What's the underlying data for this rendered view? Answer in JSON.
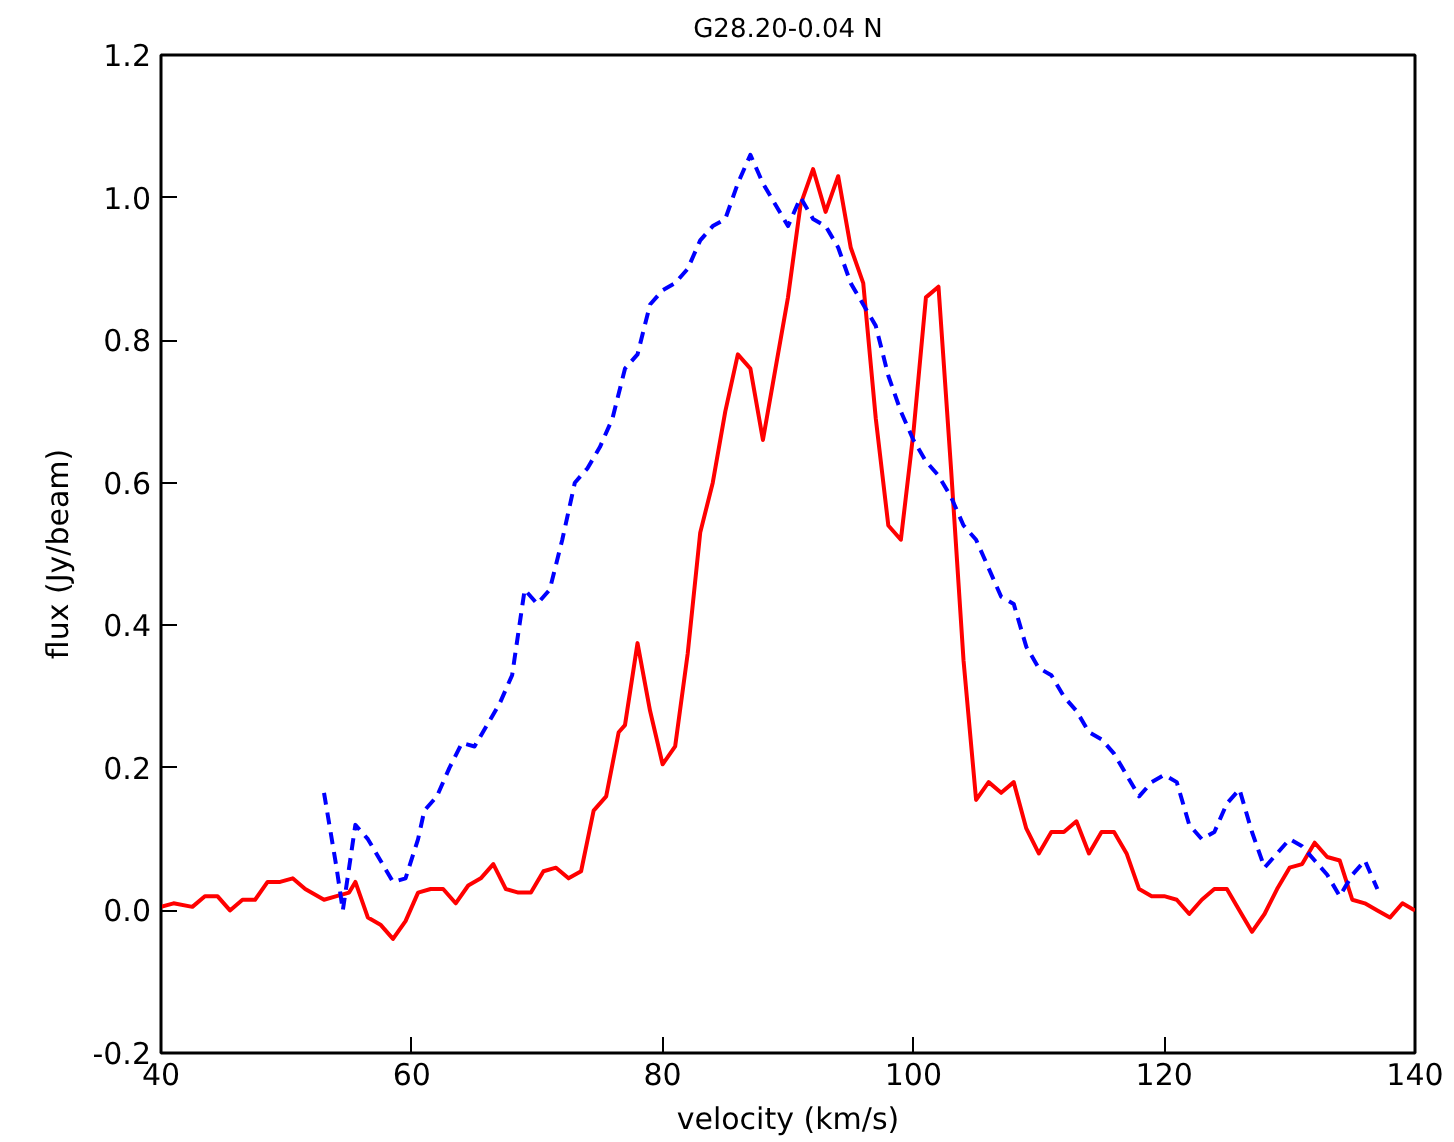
{
  "chart_data": {
    "type": "line",
    "title": "G28.20-0.04 N",
    "xlabel": "velocity (km/s)",
    "ylabel": "flux (Jy/beam)",
    "xlim": [
      40,
      140
    ],
    "xticks": [
      40,
      60,
      80,
      100,
      120,
      140
    ],
    "ylim": [
      -0.2,
      1.2
    ],
    "yticks": [
      {
        "value": -0.2,
        "label": "-0.2"
      },
      {
        "value": 0.0,
        "label": "0.0"
      },
      {
        "value": 0.2,
        "label": "0.2"
      },
      {
        "value": 0.4,
        "label": "0.4"
      },
      {
        "value": 0.6,
        "label": "0.6"
      },
      {
        "value": 0.8,
        "label": "0.8"
      },
      {
        "value": 1.0,
        "label": "1.0"
      },
      {
        "value": 1.2,
        "label": "1.2"
      }
    ],
    "grid": false,
    "series": [
      {
        "color": "#ff0000",
        "line_style": "solid",
        "x": [
          40,
          41,
          42.5,
          43.5,
          44.5,
          45.5,
          46.5,
          47.5,
          48.5,
          49.5,
          50.5,
          51.5,
          53,
          54,
          55,
          55.5,
          56.5,
          57.5,
          58.5,
          59.5,
          60.5,
          61.5,
          62.5,
          63.5,
          64.5,
          65.5,
          66.5,
          67.5,
          68.5,
          69.5,
          70.5,
          71.5,
          72.5,
          73.5,
          74.5,
          75.5,
          76.5,
          77,
          78,
          79,
          80,
          81,
          82,
          83,
          84,
          85,
          86,
          87,
          88,
          89,
          90,
          91,
          92,
          93,
          94,
          95,
          96,
          97,
          98,
          99,
          100,
          101,
          102,
          103,
          104,
          105,
          106,
          107,
          108,
          109,
          110,
          111,
          112,
          113,
          114,
          115,
          116,
          117,
          118,
          119,
          120,
          121,
          122,
          123,
          124,
          125,
          126,
          127,
          128,
          129,
          130,
          131,
          132,
          133,
          134,
          135,
          136,
          137,
          138,
          139,
          140
        ],
        "values": [
          0.005,
          0.01,
          0.005,
          0.02,
          0.02,
          0.0,
          0.015,
          0.015,
          0.04,
          0.04,
          0.045,
          0.03,
          0.015,
          0.02,
          0.025,
          0.04,
          -0.01,
          -0.02,
          -0.04,
          -0.015,
          0.025,
          0.03,
          0.03,
          0.01,
          0.035,
          0.045,
          0.065,
          0.03,
          0.025,
          0.025,
          0.055,
          0.06,
          0.045,
          0.055,
          0.14,
          0.16,
          0.25,
          0.26,
          0.375,
          0.28,
          0.205,
          0.23,
          0.36,
          0.53,
          0.6,
          0.7,
          0.78,
          0.76,
          0.66,
          0.76,
          0.86,
          0.99,
          1.04,
          0.98,
          1.03,
          0.93,
          0.88,
          0.69,
          0.54,
          0.52,
          0.67,
          0.86,
          0.875,
          0.62,
          0.35,
          0.155,
          0.18,
          0.165,
          0.18,
          0.115,
          0.08,
          0.11,
          0.11,
          0.125,
          0.08,
          0.11,
          0.11,
          0.08,
          0.03,
          0.02,
          0.02,
          0.015,
          -0.005,
          0.015,
          0.03,
          0.03,
          0.0,
          -0.03,
          -0.005,
          0.03,
          0.06,
          0.065,
          0.095,
          0.075,
          0.07,
          0.015,
          0.01,
          0.0,
          -0.01,
          0.01,
          0.0
        ]
      },
      {
        "color": "#0000ff",
        "line_style": "dashed",
        "x": [
          53,
          54,
          54.5,
          55.5,
          56.5,
          57.5,
          58.5,
          59.5,
          60.5,
          61,
          62,
          63,
          64,
          65,
          66,
          67,
          68,
          69,
          70,
          71,
          72,
          73,
          74,
          75,
          76,
          77,
          78,
          79,
          80,
          81,
          82,
          83,
          84,
          85,
          86,
          87,
          88,
          89,
          90,
          91,
          92,
          93,
          94,
          95,
          96,
          97,
          98,
          99,
          100,
          101,
          102,
          103,
          104,
          105,
          106,
          107,
          108,
          109,
          110,
          111,
          112,
          113,
          114,
          115,
          116,
          117,
          118,
          119,
          120,
          121,
          122,
          123,
          124,
          125,
          126,
          127,
          128,
          129,
          130,
          131,
          132,
          133,
          134,
          135,
          136,
          137
        ],
        "values": [
          0.165,
          0.06,
          0.0,
          0.12,
          0.1,
          0.07,
          0.04,
          0.045,
          0.1,
          0.14,
          0.16,
          0.2,
          0.235,
          0.23,
          0.26,
          0.29,
          0.33,
          0.45,
          0.43,
          0.45,
          0.52,
          0.6,
          0.62,
          0.65,
          0.69,
          0.76,
          0.78,
          0.85,
          0.87,
          0.88,
          0.9,
          0.94,
          0.96,
          0.97,
          1.02,
          1.06,
          1.02,
          0.99,
          0.96,
          1.0,
          0.97,
          0.96,
          0.93,
          0.88,
          0.85,
          0.82,
          0.75,
          0.7,
          0.66,
          0.63,
          0.61,
          0.58,
          0.54,
          0.52,
          0.48,
          0.44,
          0.43,
          0.37,
          0.34,
          0.33,
          0.3,
          0.28,
          0.25,
          0.24,
          0.22,
          0.19,
          0.16,
          0.18,
          0.19,
          0.18,
          0.12,
          0.1,
          0.11,
          0.15,
          0.17,
          0.11,
          0.06,
          0.08,
          0.1,
          0.09,
          0.07,
          0.05,
          0.02,
          0.05,
          0.07,
          0.03
        ]
      }
    ]
  }
}
